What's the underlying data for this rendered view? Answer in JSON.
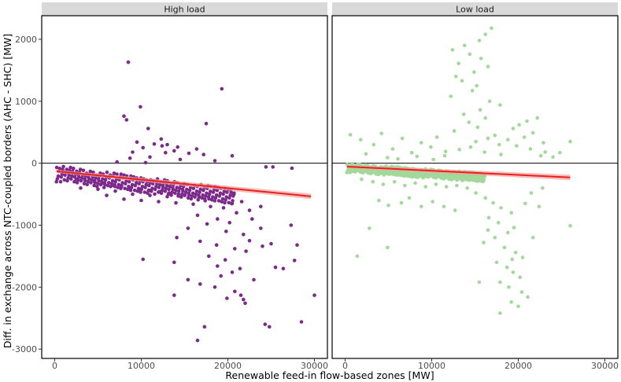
{
  "chart_data": {
    "type": "scatter",
    "xlabel": "Renewable feed-in flow-based zones [MW]",
    "ylabel": "Diff. in exchange across NTC-coupled borders (AHC - SHC) [MW]",
    "xlim": [
      -1500,
      31500
    ],
    "ylim": [
      -3150,
      2380
    ],
    "x_ticks": [
      0,
      10000,
      20000,
      30000
    ],
    "x_tick_labels": [
      "0",
      "10000",
      "20000",
      "30000"
    ],
    "y_ticks": [
      2000,
      1000,
      0,
      -1000,
      -2000,
      -3000
    ],
    "y_tick_labels": [
      "2000",
      "1000",
      "0",
      "-1000",
      "-2000",
      "-3000"
    ],
    "reference_line_y": 0,
    "grid": false,
    "colors": {
      "reference_line": "#000000",
      "trend_line": "#e8211d",
      "confidence_band": "#f2a3a0"
    },
    "panels": [
      {
        "title": "High load",
        "point_color": "#7b2a8b",
        "trend": {
          "x": [
            200,
            29600
          ],
          "y": [
            -130,
            -535
          ]
        },
        "points": [
          [
            8500,
            1630
          ],
          [
            19300,
            1200
          ],
          [
            9900,
            910
          ],
          [
            8000,
            760
          ],
          [
            8300,
            700
          ],
          [
            17500,
            640
          ],
          [
            10800,
            560
          ],
          [
            12300,
            390
          ],
          [
            9500,
            340
          ],
          [
            11500,
            310
          ],
          [
            13000,
            300
          ],
          [
            12400,
            280
          ],
          [
            14200,
            260
          ],
          [
            10200,
            250
          ],
          [
            16400,
            230
          ],
          [
            13800,
            200
          ],
          [
            9000,
            180
          ],
          [
            12800,
            170
          ],
          [
            15500,
            160
          ],
          [
            17200,
            140
          ],
          [
            20500,
            120
          ],
          [
            11000,
            100
          ],
          [
            8700,
            80
          ],
          [
            14500,
            60
          ],
          [
            18500,
            40
          ],
          [
            7200,
            20
          ],
          [
            10500,
            10
          ],
          [
            24400,
            -60
          ],
          [
            25200,
            -60
          ],
          [
            27400,
            -80
          ],
          [
            2500,
            -260
          ],
          [
            3500,
            -280
          ],
          [
            4600,
            -300
          ],
          [
            5500,
            -320
          ],
          [
            6600,
            -360
          ],
          [
            7700,
            -380
          ],
          [
            8800,
            -400
          ],
          [
            9900,
            -420
          ],
          [
            11000,
            -440
          ],
          [
            12100,
            -460
          ],
          [
            13200,
            -480
          ],
          [
            14300,
            -500
          ],
          [
            3000,
            -400
          ],
          [
            5000,
            -420
          ],
          [
            7000,
            -450
          ],
          [
            9000,
            -500
          ],
          [
            11000,
            -520
          ],
          [
            13000,
            -540
          ],
          [
            15000,
            -520
          ],
          [
            17000,
            -560
          ],
          [
            6000,
            -520
          ],
          [
            8000,
            -580
          ],
          [
            10000,
            -600
          ],
          [
            12000,
            -620
          ],
          [
            14000,
            -640
          ],
          [
            16000,
            -660
          ],
          [
            18000,
            -700
          ],
          [
            19500,
            -720
          ],
          [
            20500,
            -650
          ],
          [
            22500,
            -760
          ],
          [
            21000,
            -800
          ],
          [
            23800,
            -700
          ],
          [
            16500,
            -840
          ],
          [
            18800,
            -900
          ],
          [
            20200,
            -960
          ],
          [
            17600,
            -980
          ],
          [
            15400,
            -1050
          ],
          [
            19800,
            -1100
          ],
          [
            21800,
            -1150
          ],
          [
            14100,
            -1200
          ],
          [
            16800,
            -1260
          ],
          [
            18700,
            -1320
          ],
          [
            20800,
            -1380
          ],
          [
            22100,
            -1420
          ],
          [
            17800,
            -1500
          ],
          [
            19700,
            -1560
          ],
          [
            10200,
            -1550
          ],
          [
            13800,
            -1600
          ],
          [
            18800,
            -1660
          ],
          [
            21400,
            -1700
          ],
          [
            20500,
            -1760
          ],
          [
            19200,
            -1820
          ],
          [
            23000,
            -1880
          ],
          [
            15400,
            -1880
          ],
          [
            16800,
            -1950
          ],
          [
            18500,
            -2000
          ],
          [
            20800,
            -2070
          ],
          [
            21500,
            -2130
          ],
          [
            19900,
            -2180
          ],
          [
            22000,
            -2260
          ],
          [
            13800,
            -2130
          ],
          [
            21800,
            -2200
          ],
          [
            30000,
            -2130
          ],
          [
            24800,
            -2640
          ],
          [
            24300,
            -2600
          ],
          [
            28500,
            -2560
          ],
          [
            17300,
            -2640
          ],
          [
            16500,
            -2860
          ],
          [
            25500,
            -1680
          ],
          [
            27700,
            -1570
          ],
          [
            26400,
            -1700
          ],
          [
            27300,
            -1000
          ],
          [
            28000,
            -1320
          ],
          [
            24000,
            -1340
          ],
          [
            25000,
            -1300
          ],
          [
            23800,
            -1050
          ],
          [
            22500,
            -1250
          ],
          [
            22800,
            -900
          ],
          [
            21600,
            -620
          ],
          [
            20700,
            -500
          ]
        ]
      },
      {
        "title": "Low load",
        "point_color": "#a2d99b",
        "trend": {
          "x": [
            200,
            26000
          ],
          "y": [
            -55,
            -230
          ]
        },
        "points": [
          [
            16900,
            2180
          ],
          [
            16200,
            2080
          ],
          [
            15500,
            1980
          ],
          [
            13800,
            1900
          ],
          [
            12400,
            1830
          ],
          [
            14400,
            1760
          ],
          [
            15700,
            1690
          ],
          [
            13100,
            1610
          ],
          [
            16500,
            1560
          ],
          [
            14900,
            1470
          ],
          [
            12800,
            1400
          ],
          [
            13500,
            1330
          ],
          [
            15200,
            1250
          ],
          [
            14700,
            1170
          ],
          [
            12200,
            1080
          ],
          [
            16700,
            1000
          ],
          [
            17900,
            940
          ],
          [
            15600,
            860
          ],
          [
            13700,
            790
          ],
          [
            16200,
            730
          ],
          [
            14300,
            660
          ],
          [
            15300,
            580
          ],
          [
            12600,
            520
          ],
          [
            17300,
            450
          ],
          [
            16500,
            400
          ],
          [
            15100,
            350
          ],
          [
            17800,
            300
          ],
          [
            14500,
            260
          ],
          [
            13200,
            220
          ],
          [
            16100,
            180
          ],
          [
            18000,
            140
          ],
          [
            11500,
            120
          ],
          [
            22200,
            730
          ],
          [
            21000,
            680
          ],
          [
            20100,
            620
          ],
          [
            19400,
            560
          ],
          [
            21700,
            490
          ],
          [
            20700,
            420
          ],
          [
            18800,
            380
          ],
          [
            22900,
            330
          ],
          [
            19800,
            280
          ],
          [
            21400,
            230
          ],
          [
            23100,
            180
          ],
          [
            22600,
            120
          ],
          [
            24800,
            170
          ],
          [
            26000,
            350
          ],
          [
            24000,
            100
          ],
          [
            600,
            460
          ],
          [
            1800,
            380
          ],
          [
            3300,
            300
          ],
          [
            4200,
            480
          ],
          [
            5500,
            230
          ],
          [
            6600,
            400
          ],
          [
            7700,
            170
          ],
          [
            8800,
            330
          ],
          [
            9900,
            260
          ],
          [
            10600,
            420
          ],
          [
            11600,
            190
          ],
          [
            2400,
            150
          ],
          [
            4900,
            90
          ],
          [
            6100,
            70
          ],
          [
            8300,
            110
          ],
          [
            10200,
            60
          ],
          [
            1900,
            -260
          ],
          [
            3200,
            -300
          ],
          [
            4400,
            -340
          ],
          [
            5700,
            -300
          ],
          [
            6900,
            -360
          ],
          [
            8100,
            -320
          ],
          [
            9300,
            -380
          ],
          [
            10500,
            -340
          ],
          [
            11700,
            -380
          ],
          [
            12900,
            -360
          ],
          [
            14100,
            -400
          ],
          [
            3900,
            -600
          ],
          [
            5000,
            -680
          ],
          [
            6500,
            -640
          ],
          [
            7400,
            -560
          ],
          [
            8800,
            -700
          ],
          [
            10100,
            -620
          ],
          [
            11400,
            -700
          ],
          [
            12700,
            -760
          ],
          [
            2800,
            -1050
          ],
          [
            1400,
            -1500
          ],
          [
            4900,
            -1360
          ],
          [
            15100,
            -480
          ],
          [
            16200,
            -560
          ],
          [
            17100,
            -640
          ],
          [
            18000,
            -720
          ],
          [
            19200,
            -800
          ],
          [
            16600,
            -880
          ],
          [
            17700,
            -960
          ],
          [
            19500,
            -1040
          ],
          [
            18800,
            -1120
          ],
          [
            17300,
            -1200
          ],
          [
            16000,
            -1280
          ],
          [
            18400,
            -1360
          ],
          [
            19700,
            -1440
          ],
          [
            20500,
            -1520
          ],
          [
            17500,
            -1600
          ],
          [
            18700,
            -1680
          ],
          [
            19400,
            -1760
          ],
          [
            20200,
            -1840
          ],
          [
            17900,
            -1920
          ],
          [
            18900,
            -2000
          ],
          [
            20400,
            -2080
          ],
          [
            21100,
            -2160
          ],
          [
            19200,
            -2240
          ],
          [
            20000,
            -2310
          ],
          [
            17900,
            -2420
          ],
          [
            15500,
            -1920
          ],
          [
            19300,
            -1550
          ],
          [
            16500,
            -1080
          ],
          [
            21700,
            -1200
          ],
          [
            22400,
            -700
          ],
          [
            20800,
            -650
          ],
          [
            21500,
            -480
          ],
          [
            22800,
            -400
          ],
          [
            26000,
            -1010
          ]
        ]
      }
    ]
  }
}
